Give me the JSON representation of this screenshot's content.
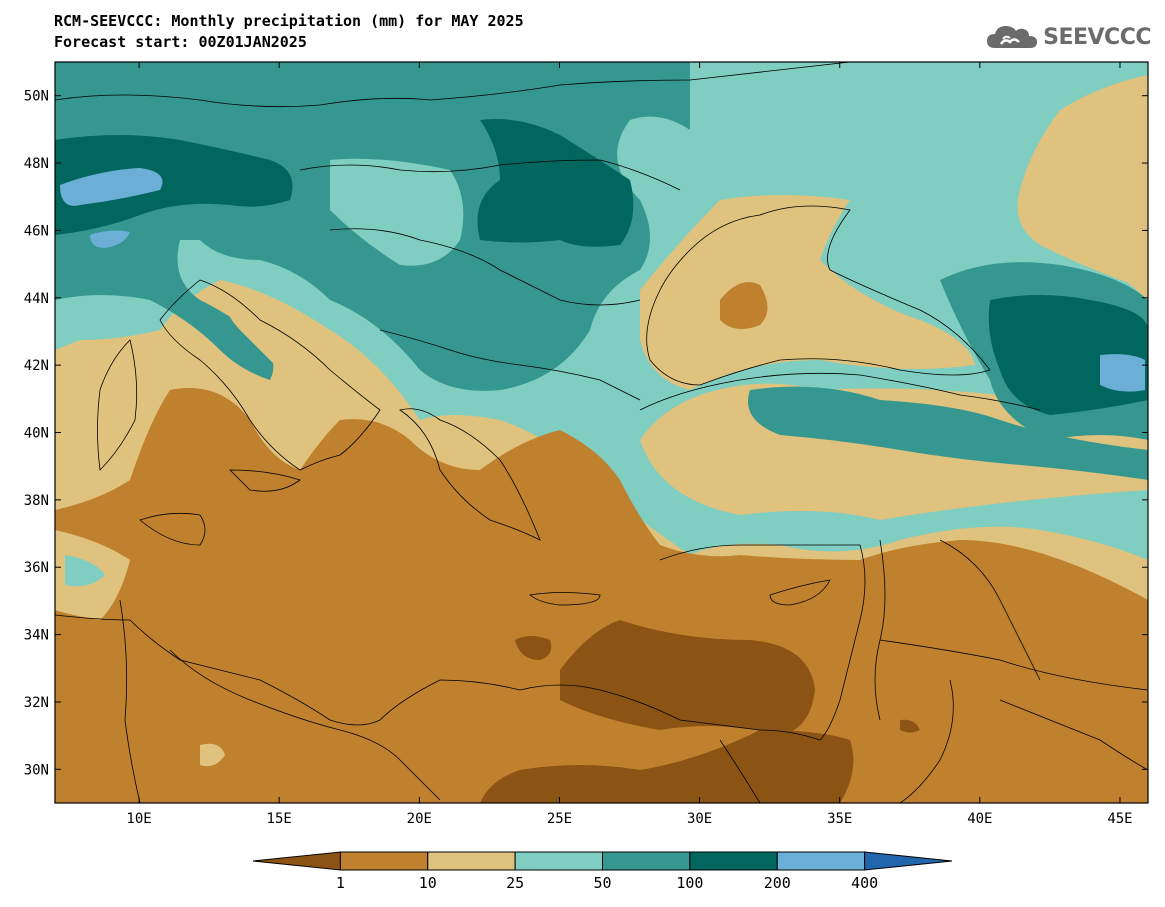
{
  "header": {
    "title_line1": "RCM-SEEVCCC: Monthly precipitation (mm) for MAY 2025",
    "title_line2": "Forecast start: 00Z01JAN2025"
  },
  "logo": {
    "text": "SEEVCCC",
    "icon": "cloud-logo-icon"
  },
  "map": {
    "lon_range": [
      7,
      46
    ],
    "lat_range": [
      29,
      51
    ],
    "lon_ticks": [
      {
        "value": 10,
        "label": "10E"
      },
      {
        "value": 15,
        "label": "15E"
      },
      {
        "value": 20,
        "label": "20E"
      },
      {
        "value": 25,
        "label": "25E"
      },
      {
        "value": 30,
        "label": "30E"
      },
      {
        "value": 35,
        "label": "35E"
      },
      {
        "value": 40,
        "label": "40E"
      },
      {
        "value": 45,
        "label": "45E"
      }
    ],
    "lat_ticks": [
      {
        "value": 30,
        "label": "30N"
      },
      {
        "value": 32,
        "label": "32N"
      },
      {
        "value": 34,
        "label": "34N"
      },
      {
        "value": 36,
        "label": "36N"
      },
      {
        "value": 38,
        "label": "38N"
      },
      {
        "value": 40,
        "label": "40N"
      },
      {
        "value": 42,
        "label": "42N"
      },
      {
        "value": 44,
        "label": "44N"
      },
      {
        "value": 46,
        "label": "46N"
      },
      {
        "value": 48,
        "label": "48N"
      },
      {
        "value": 50,
        "label": "50N"
      }
    ]
  },
  "colorbar": {
    "boundaries": [
      "1",
      "10",
      "25",
      "50",
      "100",
      "200",
      "400"
    ],
    "colors": [
      "#8c5414",
      "#bf812d",
      "#dfc27d",
      "#80cdc1",
      "#35978f",
      "#01665e",
      "#6baed6",
      "#2166ac"
    ],
    "under_color": "#8c5414",
    "over_color": "#2166ac"
  }
}
